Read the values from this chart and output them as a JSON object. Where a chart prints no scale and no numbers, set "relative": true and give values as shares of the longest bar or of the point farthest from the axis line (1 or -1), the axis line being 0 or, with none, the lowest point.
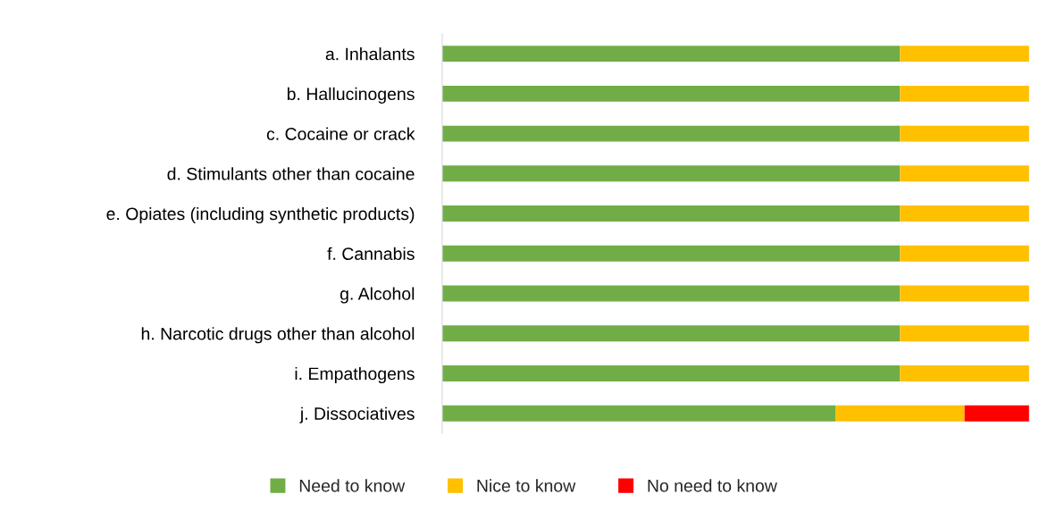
{
  "chart_data": {
    "type": "bar",
    "orientation": "horizontal",
    "stacked": true,
    "relative": true,
    "categories": [
      "a. Inhalants",
      "b. Hallucinogens",
      "c. Cocaine or crack",
      "d. Stimulants other than cocaine",
      "e. Opiates (including synthetic products)",
      "f. Cannabis",
      "g. Alcohol",
      "h. Narcotic drugs other than alcohol",
      "i. Empathogens",
      "j. Dissociatives"
    ],
    "series": [
      {
        "name": "Need to know",
        "color": "#70ad47",
        "values": [
          0.78,
          0.78,
          0.78,
          0.78,
          0.78,
          0.78,
          0.78,
          0.78,
          0.78,
          0.67
        ]
      },
      {
        "name": "Nice to know",
        "color": "#ffc000",
        "values": [
          0.22,
          0.22,
          0.22,
          0.22,
          0.22,
          0.22,
          0.22,
          0.22,
          0.22,
          0.22
        ]
      },
      {
        "name": "No need to know",
        "color": "#ff0000",
        "values": [
          0,
          0,
          0,
          0,
          0,
          0,
          0,
          0,
          0,
          0.11
        ]
      }
    ],
    "legend": "bottom",
    "grid": false
  }
}
